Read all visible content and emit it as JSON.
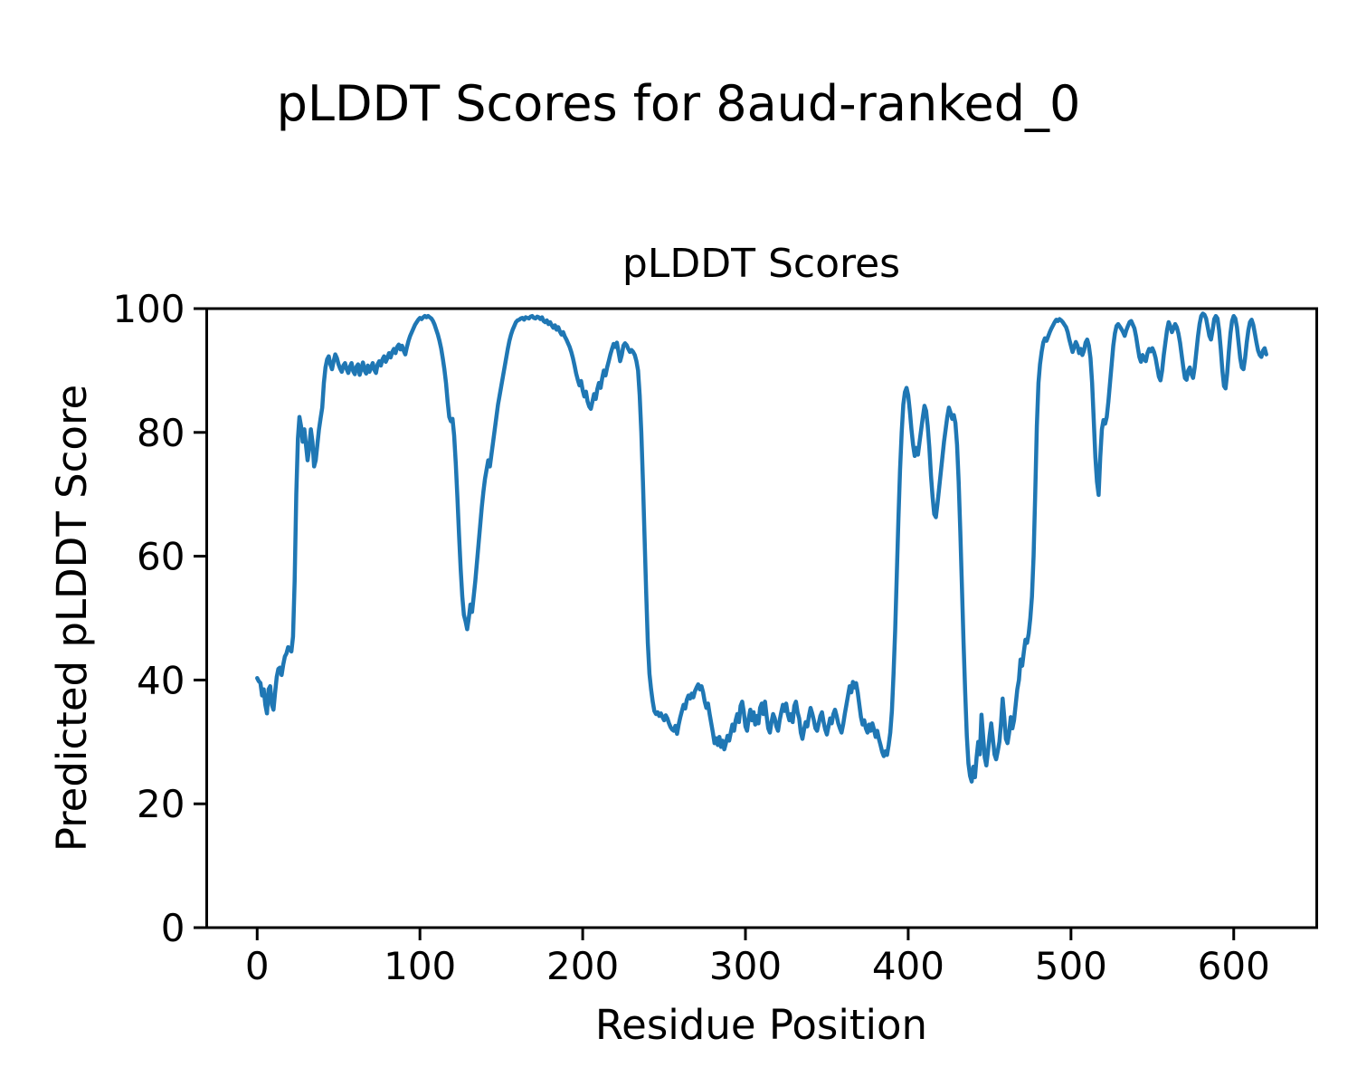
{
  "chart_data": {
    "type": "line",
    "suptitle": "pLDDT Scores for 8aud-ranked_0",
    "title": "pLDDT Scores",
    "xlabel": "Residue Position",
    "ylabel": "Predicted pLDDT Score",
    "xlim": [
      -31,
      651
    ],
    "ylim": [
      0,
      100
    ],
    "xticks": [
      0,
      100,
      200,
      300,
      400,
      500,
      600
    ],
    "yticks": [
      0,
      20,
      40,
      60,
      80,
      100
    ],
    "grid": false,
    "legend": "none",
    "line_color": "#1f77b4",
    "spine_color": "#000000",
    "background_color": "#ffffff",
    "series": [
      {
        "name": "pLDDT",
        "x_start": 0,
        "x_step": 1,
        "y": [
          40.3,
          39.8,
          39.5,
          37.5,
          38.5,
          36.0,
          34.6,
          38.5,
          39.0,
          36.0,
          35.2,
          38.0,
          40.5,
          41.8,
          42.0,
          40.8,
          42.5,
          43.8,
          44.3,
          45.3,
          45.0,
          44.6,
          47.0,
          56.0,
          70.0,
          79.0,
          82.5,
          81.0,
          78.5,
          80.5,
          78.0,
          75.5,
          77.5,
          80.5,
          78.5,
          74.5,
          75.5,
          78.0,
          80.5,
          82.3,
          84.0,
          88.0,
          90.5,
          91.8,
          92.3,
          91.0,
          90.2,
          91.5,
          92.6,
          92.0,
          91.0,
          90.3,
          89.8,
          90.8,
          91.2,
          90.2,
          89.6,
          90.6,
          91.2,
          89.9,
          89.4,
          90.6,
          91.0,
          89.3,
          90.3,
          91.3,
          90.0,
          89.5,
          90.8,
          89.8,
          90.5,
          91.2,
          90.1,
          89.6,
          91.0,
          91.5,
          90.8,
          91.8,
          92.3,
          91.4,
          92.0,
          92.8,
          92.1,
          93.0,
          93.5,
          92.8,
          93.8,
          94.2,
          93.4,
          94.0,
          93.2,
          92.6,
          93.8,
          94.8,
          95.6,
          96.2,
          96.8,
          97.4,
          97.8,
          98.2,
          98.5,
          98.3,
          98.6,
          98.8,
          98.6,
          98.8,
          98.6,
          98.4,
          98.0,
          97.4,
          96.6,
          95.8,
          94.8,
          93.6,
          92.0,
          90.2,
          88.0,
          85.0,
          82.5,
          81.8,
          82.2,
          79.5,
          75.0,
          69.5,
          63.5,
          58.0,
          53.5,
          50.5,
          49.5,
          48.2,
          50.0,
          52.2,
          51.0,
          53.5,
          56.0,
          59.0,
          62.0,
          65.0,
          68.0,
          70.5,
          72.5,
          74.0,
          75.5,
          74.5,
          76.5,
          78.5,
          80.5,
          82.5,
          84.5,
          86.0,
          87.5,
          89.0,
          90.5,
          92.0,
          93.5,
          94.8,
          95.8,
          96.6,
          97.2,
          97.8,
          98.1,
          98.2,
          98.4,
          98.5,
          98.2,
          98.6,
          98.5,
          98.4,
          98.7,
          98.8,
          98.5,
          98.4,
          98.7,
          98.6,
          98.3,
          98.6,
          98.0,
          97.8,
          98.1,
          97.5,
          97.8,
          97.3,
          96.9,
          97.3,
          96.6,
          97.0,
          96.3,
          95.8,
          96.2,
          95.5,
          95.0,
          94.4,
          93.8,
          93.0,
          92.0,
          90.8,
          89.5,
          88.5,
          87.6,
          88.3,
          86.8,
          85.8,
          86.6,
          85.0,
          84.2,
          83.8,
          85.0,
          86.2,
          85.4,
          87.0,
          88.0,
          87.2,
          88.8,
          90.0,
          89.2,
          90.5,
          91.5,
          92.6,
          93.5,
          94.3,
          93.8,
          94.5,
          93.0,
          91.5,
          92.5,
          94.0,
          94.4,
          94.1,
          93.5,
          93.0,
          93.3,
          93.0,
          92.5,
          91.5,
          90.0,
          86.0,
          80.0,
          72.0,
          63.0,
          54.0,
          46.0,
          41.0,
          38.5,
          36.5,
          35.0,
          34.5,
          34.8,
          34.2,
          34.6,
          34.0,
          33.5,
          34.3,
          33.8,
          33.0,
          32.4,
          32.0,
          31.8,
          32.6,
          31.3,
          32.8,
          34.0,
          35.0,
          36.0,
          35.4,
          36.8,
          37.5,
          37.0,
          37.8,
          37.2,
          38.2,
          38.8,
          39.3,
          38.5,
          39.0,
          38.0,
          36.5,
          35.5,
          36.2,
          34.5,
          33.0,
          31.5,
          29.8,
          30.6,
          29.5,
          30.8,
          29.2,
          30.2,
          28.8,
          29.8,
          31.0,
          30.2,
          31.5,
          32.8,
          31.8,
          33.5,
          34.5,
          33.2,
          35.8,
          36.5,
          34.8,
          32.5,
          31.8,
          33.8,
          35.2,
          33.5,
          34.8,
          32.8,
          34.2,
          33.0,
          35.5,
          36.2,
          34.5,
          36.5,
          34.2,
          32.2,
          31.5,
          33.2,
          34.5,
          33.8,
          32.5,
          31.8,
          33.5,
          34.8,
          36.0,
          35.0,
          36.2,
          34.5,
          33.5,
          34.5,
          33.2,
          35.8,
          36.5,
          34.8,
          33.8,
          31.5,
          30.5,
          32.0,
          33.2,
          32.5,
          34.2,
          35.5,
          34.6,
          33.5,
          32.2,
          31.8,
          33.0,
          34.2,
          34.8,
          33.2,
          32.0,
          31.2,
          32.5,
          33.8,
          33.0,
          34.5,
          35.2,
          34.2,
          33.0,
          32.2,
          31.5,
          32.8,
          34.5,
          36.0,
          37.5,
          39.0,
          38.0,
          39.7,
          38.8,
          39.5,
          38.0,
          36.0,
          34.0,
          32.8,
          33.5,
          32.2,
          31.5,
          32.8,
          31.8,
          33.0,
          32.0,
          30.8,
          31.8,
          30.5,
          29.5,
          28.4,
          27.7,
          28.5,
          27.9,
          29.5,
          31.5,
          35.0,
          41.0,
          48.0,
          57.0,
          66.0,
          74.0,
          80.0,
          84.5,
          86.5,
          87.2,
          86.0,
          83.5,
          80.5,
          78.0,
          76.2,
          77.5,
          76.4,
          78.5,
          80.5,
          82.5,
          84.3,
          83.5,
          81.0,
          77.5,
          73.0,
          69.5,
          66.8,
          66.3,
          68.5,
          71.0,
          73.5,
          76.0,
          78.5,
          80.5,
          82.5,
          84.0,
          83.2,
          82.2,
          82.8,
          81.5,
          78.0,
          72.0,
          64.0,
          55.0,
          46.0,
          38.0,
          31.0,
          26.5,
          24.5,
          23.6,
          26.0,
          24.3,
          27.5,
          30.0,
          28.0,
          34.4,
          31.0,
          27.5,
          26.2,
          28.5,
          31.0,
          33.0,
          30.5,
          28.0,
          27.2,
          28.5,
          30.0,
          33.0,
          37.0,
          34.0,
          30.5,
          29.8,
          31.5,
          34.0,
          32.2,
          33.5,
          36.0,
          38.5,
          40.0,
          43.3,
          42.3,
          44.5,
          46.5,
          46.0,
          47.5,
          50.0,
          53.5,
          60.0,
          70.0,
          81.0,
          88.0,
          91.0,
          93.0,
          94.5,
          95.2,
          94.8,
          95.5,
          96.2,
          96.8,
          97.3,
          97.8,
          98.2,
          98.0,
          98.3,
          98.1,
          97.8,
          97.4,
          97.0,
          96.2,
          95.0,
          94.0,
          93.0,
          93.8,
          94.6,
          94.0,
          92.8,
          93.5,
          92.5,
          93.2,
          94.5,
          95.0,
          94.0,
          92.0,
          88.0,
          82.0,
          76.0,
          72.0,
          69.9,
          76.0,
          80.5,
          82.0,
          81.4,
          82.5,
          85.0,
          88.0,
          91.0,
          94.0,
          96.0,
          97.2,
          97.5,
          97.1,
          96.7,
          96.2,
          95.6,
          96.5,
          97.2,
          97.8,
          98.0,
          97.4,
          96.8,
          95.5,
          93.8,
          92.2,
          91.4,
          92.5,
          91.8,
          91.5,
          92.8,
          93.5,
          93.1,
          93.6,
          93.0,
          92.0,
          90.5,
          89.0,
          88.4,
          90.0,
          92.5,
          94.5,
          96.5,
          97.8,
          97.2,
          96.2,
          96.8,
          97.5,
          97.0,
          96.0,
          94.5,
          92.5,
          90.5,
          88.8,
          88.5,
          90.0,
          90.5,
          89.4,
          88.8,
          90.5,
          93.0,
          95.5,
          97.5,
          98.8,
          99.2,
          99.0,
          98.4,
          97.0,
          95.6,
          95.0,
          96.5,
          98.3,
          98.8,
          98.4,
          96.5,
          93.5,
          90.0,
          87.5,
          87.1,
          89.5,
          93.0,
          96.0,
          98.0,
          98.8,
          98.4,
          97.0,
          94.5,
          92.0,
          90.5,
          90.2,
          92.0,
          94.5,
          96.5,
          97.8,
          98.2,
          97.4,
          96.0,
          94.5,
          93.2,
          92.5,
          92.2,
          93.2,
          93.6,
          92.6
        ]
      }
    ]
  }
}
